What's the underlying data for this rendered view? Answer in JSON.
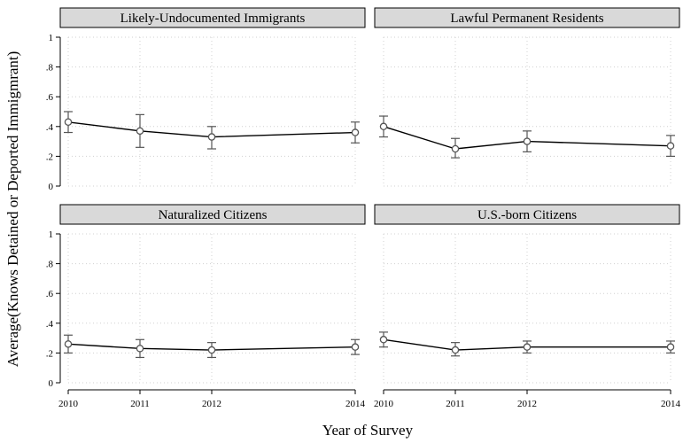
{
  "chart_data": {
    "type": "line",
    "ylabel": "Average(Knows Detained or Deported Immigmrant)",
    "xlabel": "Year of Survey",
    "x": [
      2010,
      2011,
      2012,
      2014
    ],
    "x_tick_labels": [
      "2010",
      "2011",
      "2012",
      "2014"
    ],
    "y_ticks": [
      0,
      0.2,
      0.4,
      0.6,
      0.8,
      1
    ],
    "y_tick_labels": [
      "0",
      ".2",
      ".4",
      ".6",
      ".8",
      "1"
    ],
    "ylim": [
      0,
      1
    ],
    "grid": true,
    "error_bars": true,
    "panels": [
      {
        "title": "Likely-Undocumented Immigrants",
        "values": [
          0.43,
          0.37,
          0.33,
          0.36
        ],
        "ci_low": [
          0.36,
          0.26,
          0.25,
          0.29
        ],
        "ci_high": [
          0.5,
          0.48,
          0.4,
          0.43
        ]
      },
      {
        "title": "Lawful Permanent Residents",
        "values": [
          0.4,
          0.25,
          0.3,
          0.27
        ],
        "ci_low": [
          0.33,
          0.19,
          0.23,
          0.2
        ],
        "ci_high": [
          0.47,
          0.32,
          0.37,
          0.34
        ]
      },
      {
        "title": "Naturalized Citizens",
        "values": [
          0.26,
          0.23,
          0.22,
          0.24
        ],
        "ci_low": [
          0.2,
          0.17,
          0.17,
          0.19
        ],
        "ci_high": [
          0.32,
          0.29,
          0.27,
          0.29
        ]
      },
      {
        "title": "U.S.-born Citizens",
        "values": [
          0.29,
          0.22,
          0.24,
          0.24
        ],
        "ci_low": [
          0.24,
          0.18,
          0.2,
          0.2
        ],
        "ci_high": [
          0.34,
          0.27,
          0.28,
          0.28
        ]
      }
    ],
    "colors": {
      "strip_fill": "#d9d9d9",
      "line": "#000000",
      "marker": "#555555",
      "grid": "#d0d0d0"
    }
  }
}
